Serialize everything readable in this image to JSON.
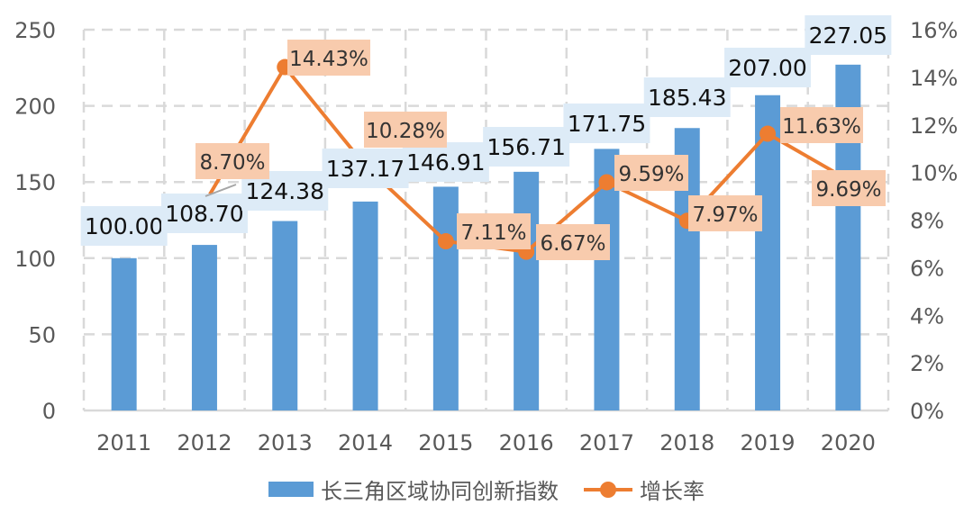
{
  "chart_data": {
    "type": "bar+line",
    "title": "",
    "categories": [
      "2011",
      "2012",
      "2013",
      "2014",
      "2015",
      "2016",
      "2017",
      "2018",
      "2019",
      "2020"
    ],
    "series": [
      {
        "name": "长三角区域协同创新指数",
        "type": "bar",
        "axis": "left",
        "color": "#5B9BD5",
        "values": [
          100.0,
          108.7,
          124.38,
          137.17,
          146.91,
          156.71,
          171.75,
          185.43,
          207.0,
          227.05
        ],
        "labels": [
          "100.00",
          "108.70",
          "124.38",
          "137.17",
          "146.91",
          "156.71",
          "171.75",
          "185.43",
          "207.00",
          "227.05"
        ]
      },
      {
        "name": "增长率",
        "type": "line",
        "axis": "right",
        "color": "#ED7D31",
        "values": [
          null,
          8.7,
          14.43,
          10.28,
          7.11,
          6.67,
          9.59,
          7.97,
          11.63,
          9.69
        ],
        "labels": [
          "",
          "8.70%",
          "14.43%",
          "10.28%",
          "7.11%",
          "6.67%",
          "9.59%",
          "7.97%",
          "11.63%",
          "9.69%"
        ]
      }
    ],
    "left_axis": {
      "min": 0,
      "max": 250,
      "ticks": [
        "0",
        "50",
        "100",
        "150",
        "200",
        "250"
      ]
    },
    "right_axis": {
      "min": 0,
      "max": 16,
      "ticks": [
        "0%",
        "2%",
        "4%",
        "6%",
        "8%",
        "10%",
        "12%",
        "14%",
        "16%"
      ]
    },
    "xlabel": "",
    "ylabel": "",
    "grid": "dashed",
    "legend_position": "bottom"
  },
  "legend": {
    "bar_label": "长三角区域协同创新指数",
    "line_label": "增长率"
  }
}
